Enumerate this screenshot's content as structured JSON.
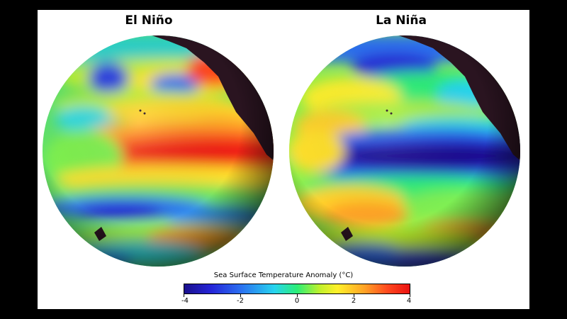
{
  "panels": [
    {
      "title": "El Niño",
      "pattern": "warm equatorial Pacific anomaly"
    },
    {
      "title": "La Niña",
      "pattern": "cold equatorial Pacific anomaly"
    }
  ],
  "colorbar": {
    "title": "Sea Surface Temperature Anomaly (°C)",
    "min": -4,
    "max": 4,
    "ticks": [
      "-4",
      "-2",
      "0",
      "2",
      "4"
    ],
    "colors": [
      "#1a0f8c",
      "#2525d8",
      "#2b6ff0",
      "#27d4ef",
      "#2bee77",
      "#bff02c",
      "#fff02a",
      "#ffa226",
      "#ff4a1f",
      "#ea1111"
    ]
  },
  "colors": {
    "background": "#000000",
    "panel": "#ffffff",
    "land": "#2a1420"
  }
}
